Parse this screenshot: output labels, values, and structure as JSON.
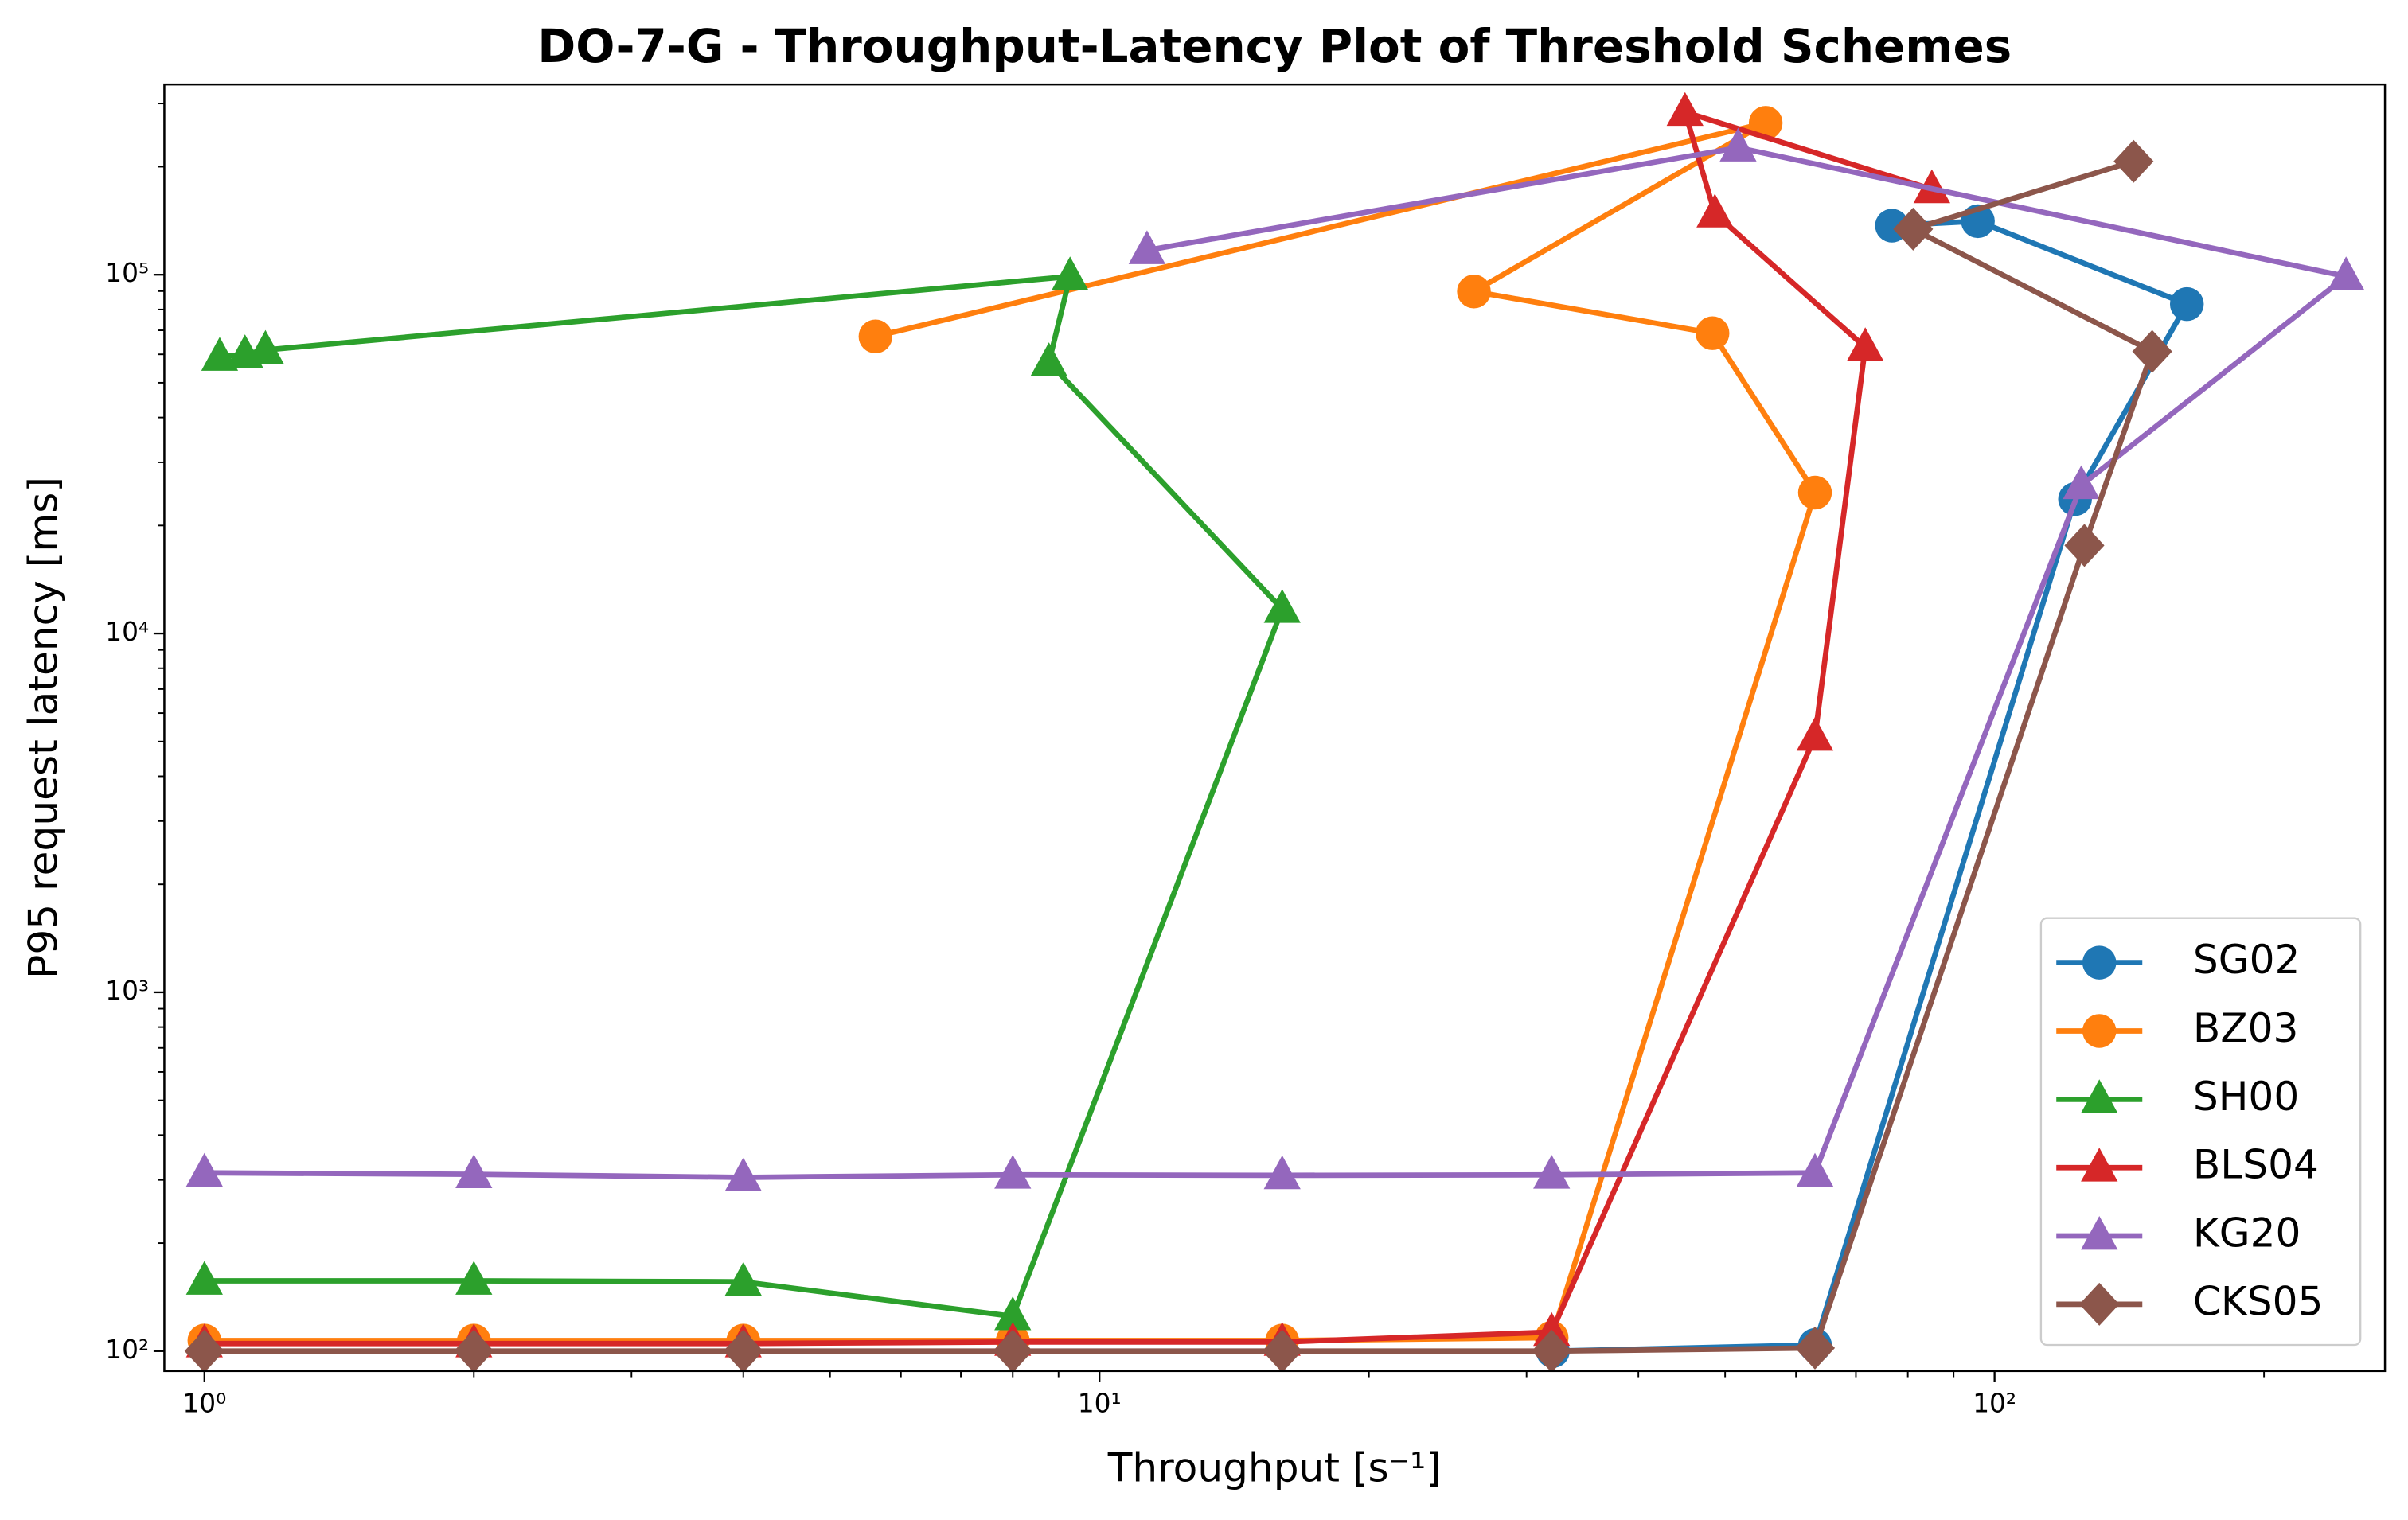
{
  "chart_data": {
    "type": "line",
    "title": "DO-7-G - Throughput-Latency Plot of Threshold Schemes",
    "xlabel": "Throughput [s⁻¹]",
    "ylabel": "P95 request latency [ms]",
    "xscale": "log",
    "yscale": "log",
    "xlim": [
      0.902,
      273
    ],
    "ylim": [
      88,
      339000
    ],
    "xticks": [
      {
        "value": 1,
        "label": "10⁰"
      },
      {
        "value": 10,
        "label": "10¹"
      },
      {
        "value": 100,
        "label": "10²"
      }
    ],
    "yticks": [
      {
        "value": 100,
        "label": "10²"
      },
      {
        "value": 1000,
        "label": "10³"
      },
      {
        "value": 10000,
        "label": "10⁴"
      },
      {
        "value": 100000,
        "label": "10⁵"
      }
    ],
    "xminorticks": [
      2,
      3,
      4,
      5,
      6,
      7,
      8,
      9,
      20,
      30,
      40,
      50,
      60,
      70,
      80,
      90,
      200
    ],
    "yminorticks": [
      200,
      300,
      400,
      500,
      600,
      700,
      800,
      900,
      2000,
      3000,
      4000,
      5000,
      6000,
      7000,
      8000,
      9000,
      20000,
      30000,
      40000,
      50000,
      60000,
      70000,
      80000,
      90000,
      200000,
      300000
    ],
    "legend": "lower right",
    "series": [
      {
        "name": "SG02",
        "color": "#1f77b4",
        "marker": "circle",
        "x": [
          32.1,
          63,
          123,
          164,
          95.8,
          76.8
        ],
        "values": [
          100,
          104,
          23700,
          82800,
          141000,
          137000
        ]
      },
      {
        "name": "BZ03",
        "color": "#ff7f0e",
        "marker": "circle",
        "x": [
          1,
          2,
          4,
          8,
          16,
          32,
          63,
          48.4,
          26.2,
          55.5,
          5.62
        ],
        "values": [
          107,
          107,
          107,
          107,
          107,
          109,
          24700,
          68700,
          89800,
          265000,
          67300
        ]
      },
      {
        "name": "SH00",
        "color": "#2ca02c",
        "marker": "triangle",
        "x": [
          1,
          2,
          4,
          8,
          16,
          8.78,
          9.27,
          1.17,
          1.11,
          1.04
        ],
        "values": [
          157,
          157,
          156,
          125,
          11700,
          57000,
          98900,
          61700,
          60000,
          59000
        ]
      },
      {
        "name": "BLS04",
        "color": "#d62728",
        "marker": "triangle",
        "x": [
          1,
          2,
          4,
          8,
          16,
          32,
          63,
          71.7,
          48.7,
          45.1,
          85.1
        ],
        "values": [
          105,
          105,
          105,
          106,
          106,
          113,
          5150,
          62800,
          148000,
          284000,
          173000
        ]
      },
      {
        "name": "KG20",
        "color": "#9467bd",
        "marker": "triangle",
        "x": [
          1,
          2,
          4,
          8,
          16,
          32,
          63,
          125,
          247,
          51.7,
          11.3
        ],
        "values": [
          314,
          311,
          305,
          310,
          309,
          310,
          314,
          25900,
          98900,
          226000,
          117000
        ]
      },
      {
        "name": "CKS05",
        "color": "#8c564b",
        "marker": "diamond",
        "x": [
          1,
          2,
          4,
          8,
          16,
          32,
          63,
          126,
          150,
          81.1,
          143
        ],
        "values": [
          100,
          100,
          100,
          100,
          100,
          100,
          102,
          17600,
          61100,
          134000,
          207000
        ]
      }
    ]
  }
}
